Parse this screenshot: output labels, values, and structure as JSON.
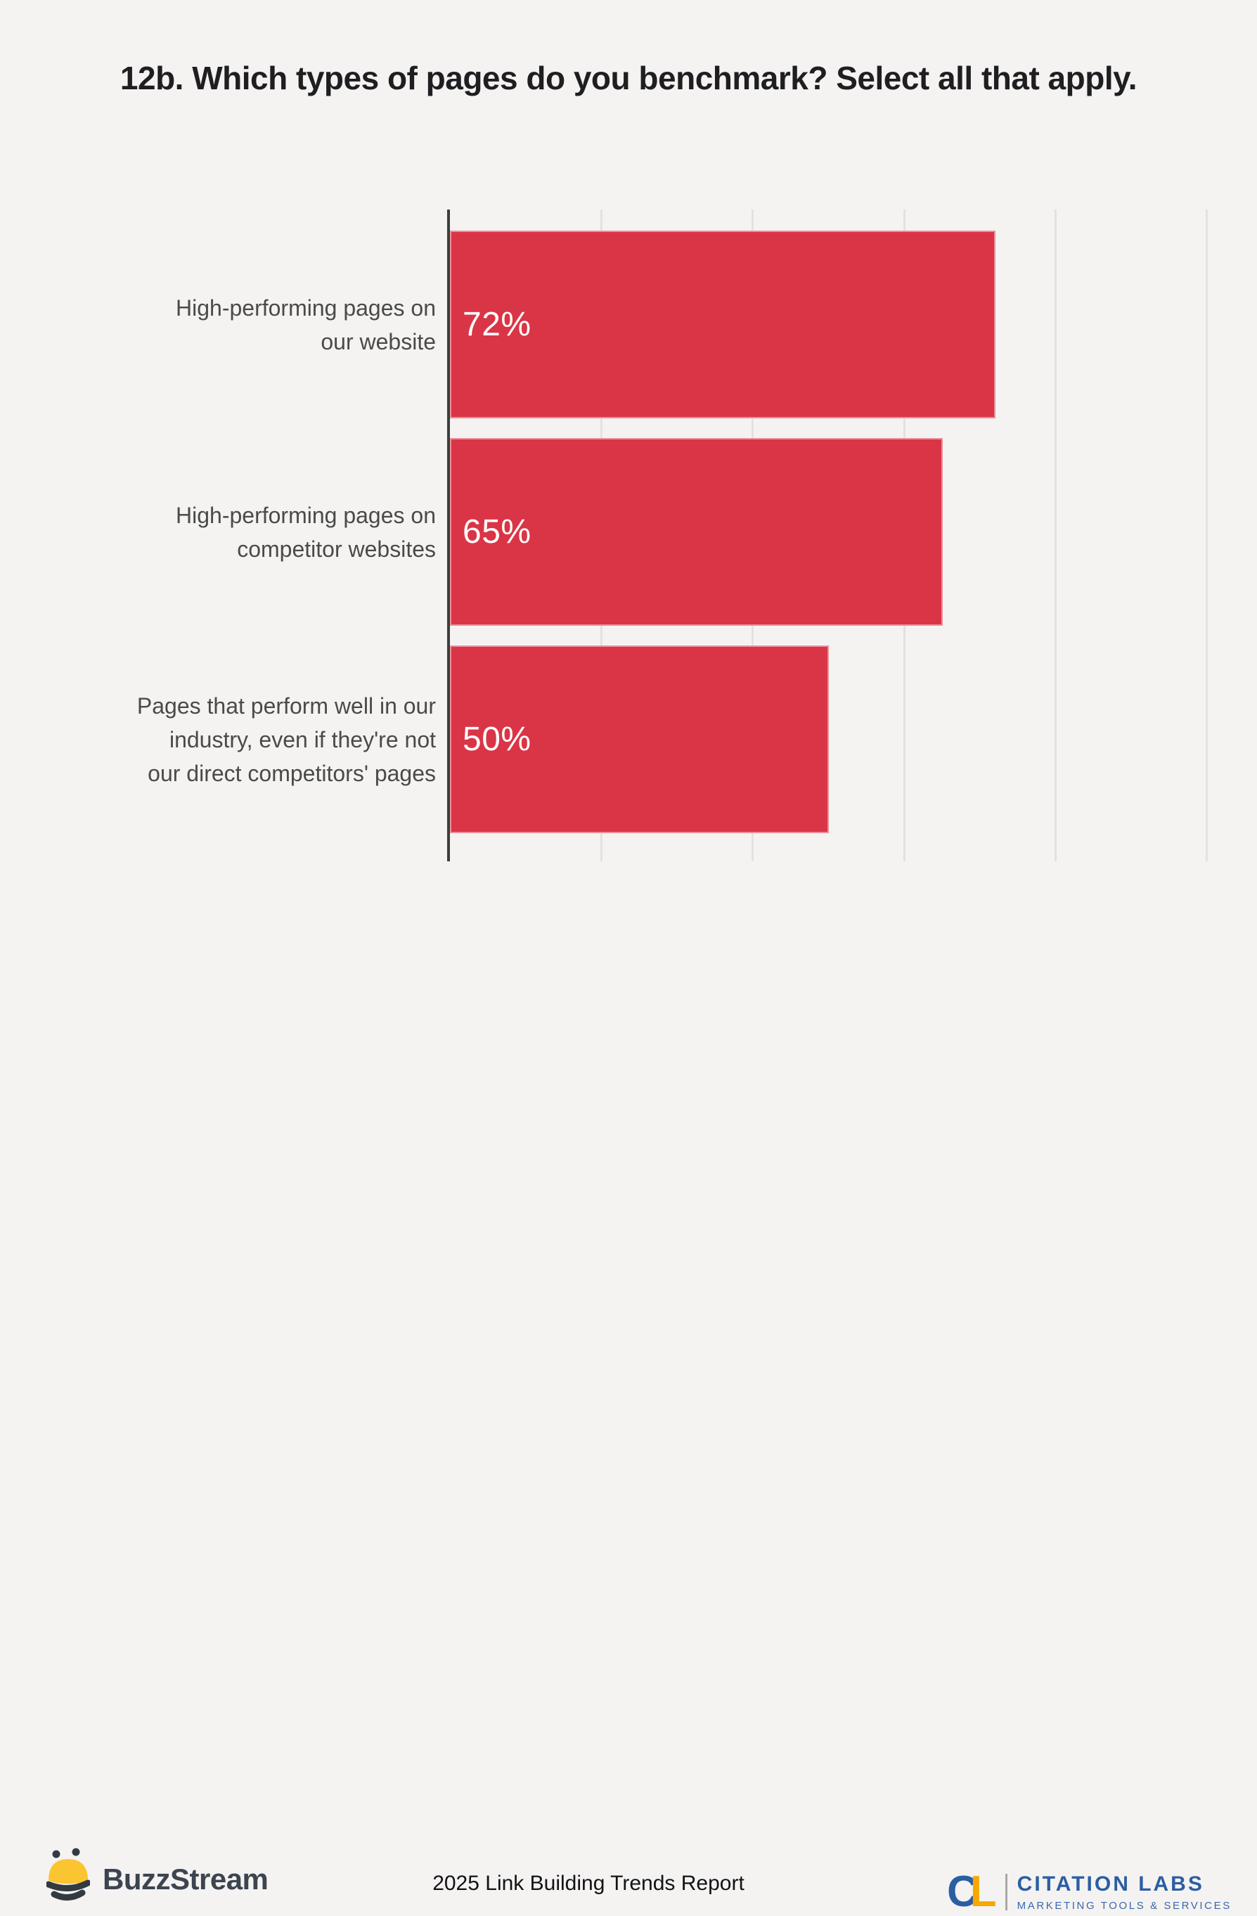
{
  "title": "12b. Which types of pages do you benchmark? Select all that apply.",
  "chart_data": {
    "type": "bar",
    "orientation": "horizontal",
    "title": "12b. Which types of pages do you benchmark? Select all that apply.",
    "categories": [
      "High-performing pages on our website",
      "High-performing pages on competitor websites",
      "Pages that perform well in our industry, even if they're not our direct competitors' pages"
    ],
    "categories_lines": [
      [
        "High-performing pages on",
        "our website"
      ],
      [
        "High-performing pages on",
        "competitor websites"
      ],
      [
        "Pages that perform well in our",
        "industry, even if they're not",
        "our direct competitors' pages"
      ]
    ],
    "values": [
      72,
      65,
      50
    ],
    "value_labels": [
      "72%",
      "65%",
      "50%"
    ],
    "xlim": [
      0,
      100
    ],
    "gridline_step_percent": 20,
    "grid": true,
    "legend": false,
    "bar_color": "#DA3546",
    "axis_color": "#3D3D3D",
    "gridline_color": "#E3E2E0",
    "background_color": "#F4F3F1"
  },
  "footer": {
    "buzzstream": {
      "icon": "bee-icon",
      "wordmark": "BuzzStream",
      "bee_yellow": "#FBC531",
      "bee_dark": "#333A42"
    },
    "report_title": "2025 Link Building Trends Report",
    "citation_labs": {
      "monogram_c": "C",
      "monogram_l": "L",
      "name": "CITATION LABS",
      "tagline": "MARKETING TOOLS & SERVICES",
      "blue": "#2B5EA3",
      "yellow": "#F7A800"
    }
  }
}
